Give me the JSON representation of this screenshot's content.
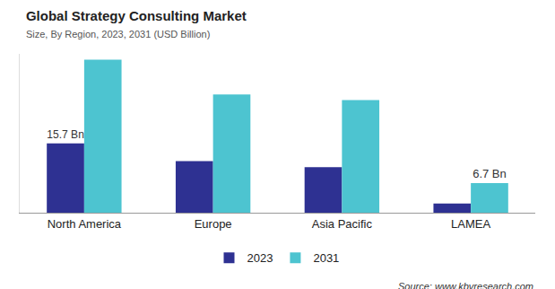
{
  "chart_data": {
    "type": "bar",
    "title": "Global Strategy Consulting Market",
    "subtitle": "Size, By Region, 2023, 2031 (USD Billion)",
    "source": "Source: www.kbvresearch.com",
    "categories": [
      "North America",
      "Europe",
      "Asia Pacific",
      "LAMEA"
    ],
    "series": [
      {
        "name": "2023",
        "color": "#2e3192",
        "values": [
          15.7,
          11.7,
          10.3,
          2.1
        ]
      },
      {
        "name": "2031",
        "color": "#4dc4d0",
        "values": [
          34.7,
          26.8,
          25.5,
          6.7
        ]
      }
    ],
    "annotations": [
      {
        "text": "15.7 Bn",
        "category": "North America",
        "series": "2023",
        "value": 15.7
      },
      {
        "text": "6.7 Bn",
        "category": "LAMEA",
        "series": "2031",
        "value": 6.7
      }
    ],
    "ylim": [
      0,
      36
    ],
    "grid": false,
    "legend": "bottom",
    "tick_labels": "x"
  }
}
